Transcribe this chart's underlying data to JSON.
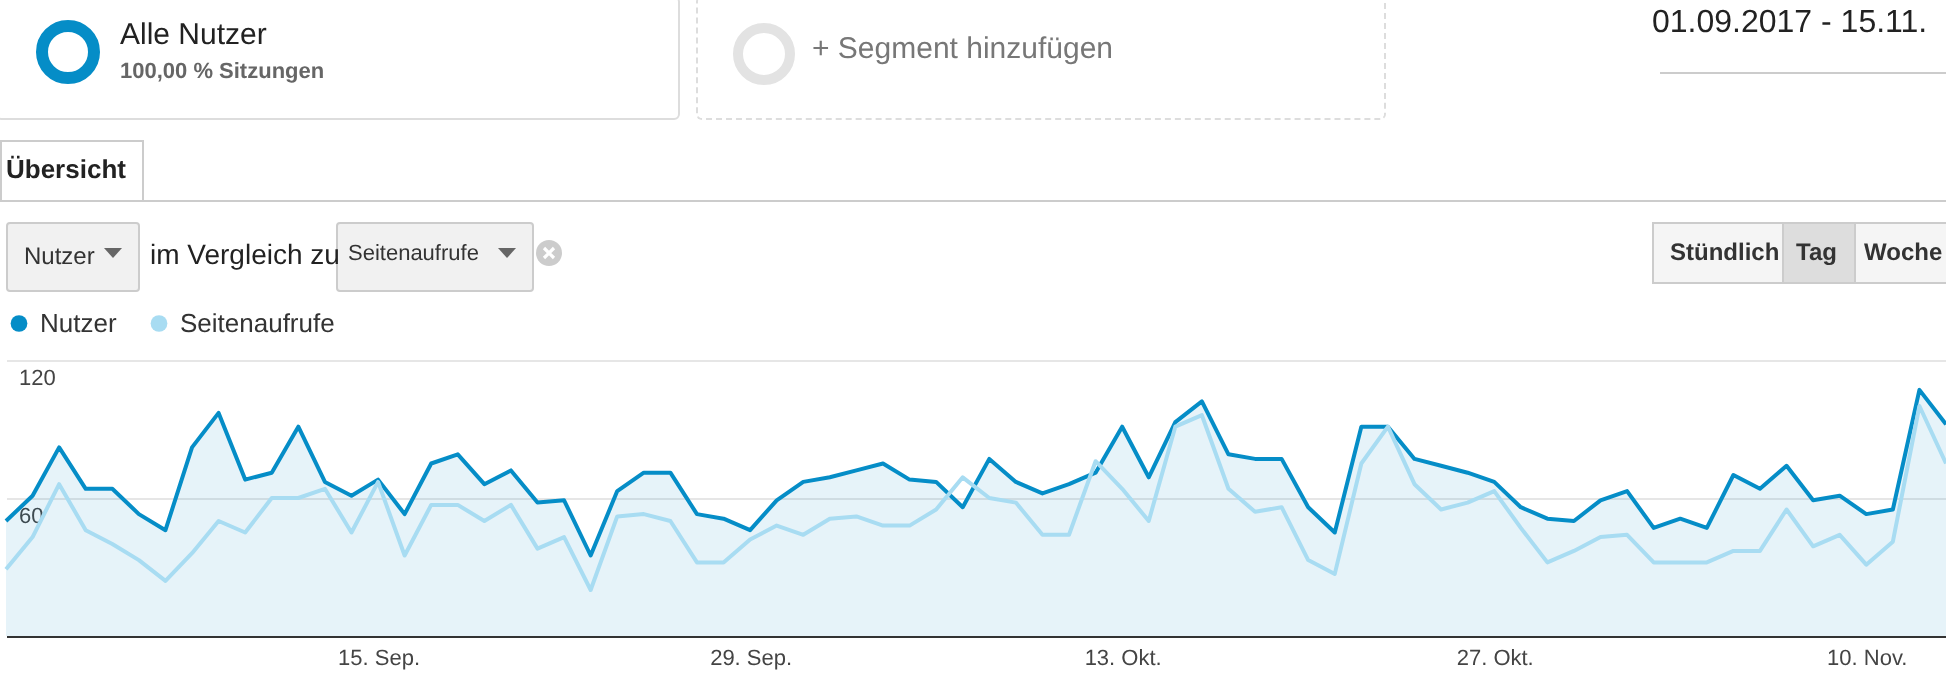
{
  "chart_data": {
    "type": "line",
    "annotations": [
      "Alle Nutzer",
      "100,00 % Sitzungen",
      "+ Segment hinzufügen",
      "01.09.2017 - 15.11.",
      "Übersicht",
      "Nutzer",
      "im Vergleich zu",
      "Seitenaufrufe",
      "Stündlich",
      "Tag",
      "Woche"
    ],
    "x": [
      "2017-09-01",
      "2017-09-02",
      "2017-09-03",
      "2017-09-04",
      "2017-09-05",
      "2017-09-06",
      "2017-09-07",
      "2017-09-08",
      "2017-09-09",
      "2017-09-10",
      "2017-09-11",
      "2017-09-12",
      "2017-09-13",
      "2017-09-14",
      "2017-09-15",
      "2017-09-16",
      "2017-09-17",
      "2017-09-18",
      "2017-09-19",
      "2017-09-20",
      "2017-09-21",
      "2017-09-22",
      "2017-09-23",
      "2017-09-24",
      "2017-09-25",
      "2017-09-26",
      "2017-09-27",
      "2017-09-28",
      "2017-09-29",
      "2017-09-30",
      "2017-10-01",
      "2017-10-02",
      "2017-10-03",
      "2017-10-04",
      "2017-10-05",
      "2017-10-06",
      "2017-10-07",
      "2017-10-08",
      "2017-10-09",
      "2017-10-10",
      "2017-10-11",
      "2017-10-12",
      "2017-10-13",
      "2017-10-14",
      "2017-10-15",
      "2017-10-16",
      "2017-10-17",
      "2017-10-18",
      "2017-10-19",
      "2017-10-20",
      "2017-10-21",
      "2017-10-22",
      "2017-10-23",
      "2017-10-24",
      "2017-10-25",
      "2017-10-26",
      "2017-10-27",
      "2017-10-28",
      "2017-10-29",
      "2017-10-30",
      "2017-10-31",
      "2017-11-01",
      "2017-11-02",
      "2017-11-03",
      "2017-11-04",
      "2017-11-05",
      "2017-11-06",
      "2017-11-07",
      "2017-11-08",
      "2017-11-09",
      "2017-11-10",
      "2017-11-11",
      "2017-11-12",
      "2017-11-13"
    ],
    "series": [
      {
        "name": "Nutzer",
        "type": "area",
        "color": "#058dc7",
        "values": [
          50,
          61,
          82,
          64,
          64,
          53,
          46,
          82,
          97,
          68,
          71,
          91,
          67,
          61,
          68,
          53,
          75,
          79,
          66,
          72,
          58,
          59,
          35,
          63,
          71,
          71,
          53,
          51,
          46,
          59,
          67,
          69,
          72,
          75,
          68,
          67,
          56,
          77,
          67,
          62,
          66,
          71,
          91,
          69,
          93,
          102,
          79,
          77,
          77,
          56,
          45,
          91,
          91,
          77,
          74,
          71,
          67,
          56,
          51,
          50,
          59,
          63,
          47,
          51,
          47,
          70,
          64,
          74,
          59,
          61,
          53,
          55,
          107,
          92
        ]
      },
      {
        "name": "Seitenaufrufe",
        "type": "line",
        "color": "#a8dcf2",
        "values": [
          29,
          43,
          66,
          46,
          40,
          33,
          24,
          36,
          50,
          45,
          60,
          60,
          64,
          45,
          67,
          35,
          57,
          57,
          50,
          57,
          38,
          43,
          20,
          52,
          53,
          50,
          32,
          32,
          42,
          48,
          44,
          51,
          52,
          48,
          48,
          55,
          69,
          60,
          58,
          44,
          44,
          76,
          64,
          50,
          91,
          96,
          64,
          54,
          56,
          33,
          27,
          75,
          91,
          66,
          55,
          58,
          63,
          47,
          32,
          37,
          43,
          44,
          32,
          32,
          32,
          37,
          37,
          55,
          39,
          44,
          31,
          41,
          100,
          75
        ]
      }
    ],
    "xlim": [
      "2017-09-01",
      "2017-11-13"
    ],
    "xticks": [
      {
        "value": "2017-09-15",
        "label": "15. Sep."
      },
      {
        "value": "2017-09-29",
        "label": "29. Sep."
      },
      {
        "value": "2017-10-13",
        "label": "13. Okt."
      },
      {
        "value": "2017-10-27",
        "label": "27. Okt."
      },
      {
        "value": "2017-11-10",
        "label": "10. Nov."
      }
    ],
    "ylim": [
      0,
      120
    ],
    "yticks": [
      {
        "value": 0,
        "label": null
      },
      60,
      120
    ],
    "grid": "y",
    "legend": "top left",
    "marker": "none",
    "line_style": "solid"
  }
}
